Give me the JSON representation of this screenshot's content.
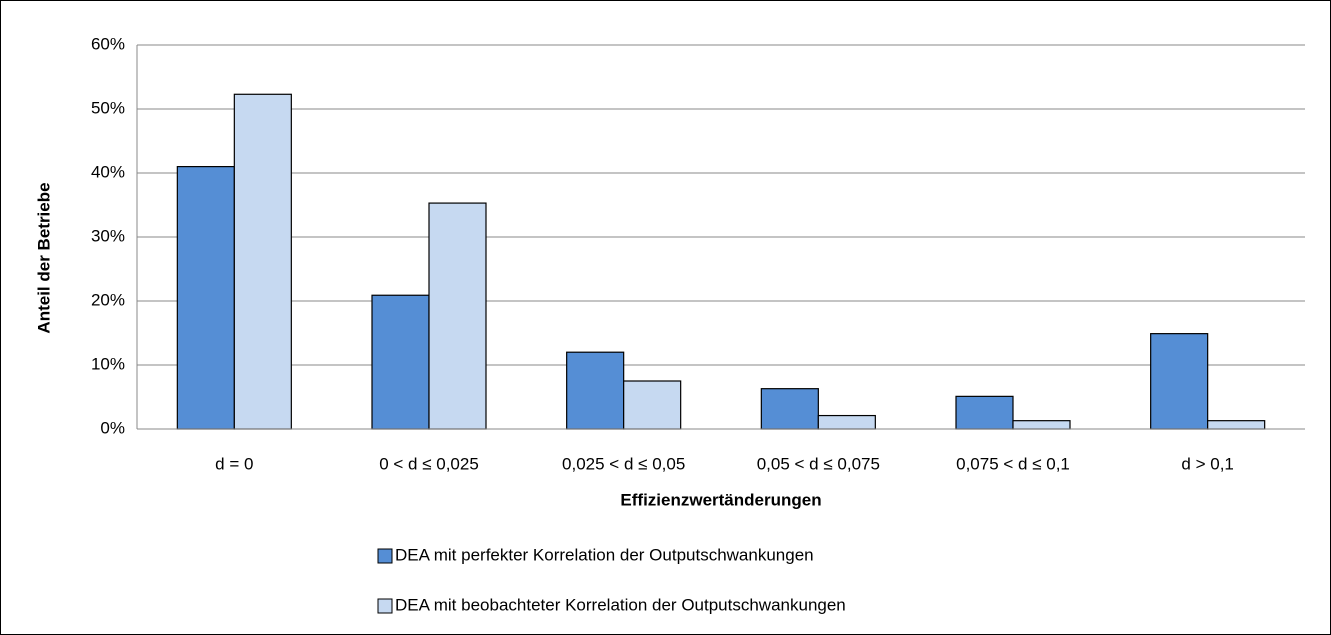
{
  "chart_data": {
    "type": "bar",
    "x_label": "Effizienzwertänderungen",
    "y_label": "Anteil der Betriebe",
    "categories": [
      "d = 0",
      "0 < d ≤ 0,025",
      "0,025 < d ≤ 0,05",
      "0,05 < d ≤ 0,075",
      "0,075 < d ≤ 0,1",
      "d > 0,1"
    ],
    "series": [
      {
        "name": "DEA mit perfekter Korrelation der Outputschwankungen",
        "color": "#558ed5",
        "values": [
          41,
          20.9,
          12,
          6.3,
          5.1,
          14.9
        ]
      },
      {
        "name": "DEA mit beobachteter Korrelation der Outputschwankungen",
        "color": "#c6d9f1",
        "values": [
          52.3,
          35.3,
          7.5,
          2.1,
          1.3,
          1.3
        ]
      }
    ],
    "ylim": [
      0,
      60
    ],
    "yticks": [
      {
        "value": 0,
        "label": "0%"
      },
      {
        "value": 10,
        "label": "10%"
      },
      {
        "value": 20,
        "label": "20%"
      },
      {
        "value": 30,
        "label": "30%"
      },
      {
        "value": 40,
        "label": "40%"
      },
      {
        "value": 50,
        "label": "50%"
      },
      {
        "value": 60,
        "label": "60%"
      }
    ],
    "grid": true,
    "legend": "bottom"
  }
}
